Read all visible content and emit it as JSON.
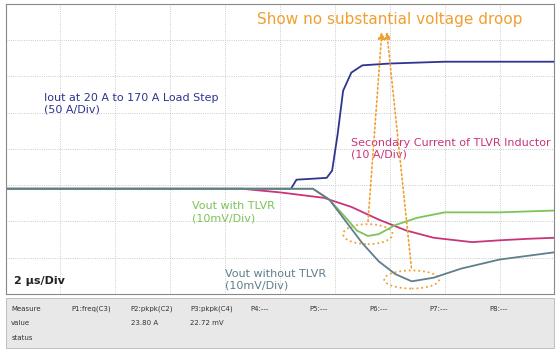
{
  "chart_data": {
    "type": "line",
    "title": "Show no substantial voltage droop",
    "xlim": [
      0,
      10
    ],
    "ylim": [
      -4,
      4
    ],
    "xticks": [
      0,
      1,
      2,
      3,
      4,
      5,
      6,
      7,
      8,
      9,
      10
    ],
    "yticks": [
      -4,
      -3,
      -2,
      -1,
      0,
      1,
      2,
      3,
      4
    ],
    "grid": true,
    "tick_labels": false,
    "series": [
      {
        "name": "Iout at 20 A to 170 A Load Step\n(50 A/Div)",
        "color": "#2e3590",
        "x": [
          0,
          5.2,
          5.3,
          5.85,
          5.95,
          6.05,
          6.15,
          6.3,
          6.5,
          7,
          8,
          9,
          10
        ],
        "values": [
          -1.1,
          -1.1,
          -0.85,
          -0.8,
          -0.6,
          0.4,
          1.6,
          2.1,
          2.3,
          2.35,
          2.4,
          2.4,
          2.4
        ]
      },
      {
        "name": "Secondary Current of TLVR Inductor\n(10 A/Div)",
        "color": "#c8357a",
        "x": [
          0,
          4.3,
          5,
          5.8,
          6.3,
          6.8,
          7.3,
          7.8,
          8.5,
          9,
          9.5,
          10
        ],
        "values": [
          -1.1,
          -1.1,
          -1.2,
          -1.35,
          -1.6,
          -1.95,
          -2.25,
          -2.45,
          -2.57,
          -2.52,
          -2.48,
          -2.45
        ]
      },
      {
        "name": "Vout with TLVR\n(10mV/Div)",
        "color": "#7cc35a",
        "x": [
          0,
          5.6,
          5.9,
          6.2,
          6.4,
          6.6,
          6.8,
          7.1,
          7.5,
          8,
          9,
          10
        ],
        "values": [
          -1.1,
          -1.1,
          -1.4,
          -1.9,
          -2.25,
          -2.4,
          -2.35,
          -2.1,
          -1.9,
          -1.75,
          -1.75,
          -1.7
        ]
      },
      {
        "name": "Vout without TLVR\n(10mV/Div)",
        "color": "#5f7f8c",
        "x": [
          0,
          5.6,
          5.9,
          6.2,
          6.5,
          6.8,
          7.1,
          7.4,
          7.8,
          8.3,
          9,
          10
        ],
        "values": [
          -1.1,
          -1.1,
          -1.4,
          -2.0,
          -2.6,
          -3.1,
          -3.45,
          -3.65,
          -3.55,
          -3.3,
          -3.05,
          -2.85
        ]
      }
    ],
    "annotations": [
      "2 µs/Div"
    ]
  },
  "measurements": {
    "columns": [
      "Measure",
      "P1:freq(C3)",
      "P2:pkpk(C2)",
      "P3:pkpk(C4)",
      "P4:---",
      "P5:---",
      "P6:---",
      "P7:---",
      "P8:---"
    ],
    "row_labels": [
      "value",
      "status"
    ],
    "values": {
      "P2:pkpk(C2)": "23.80 A",
      "P3:pkpk(C4)": "22.72 mV"
    }
  }
}
